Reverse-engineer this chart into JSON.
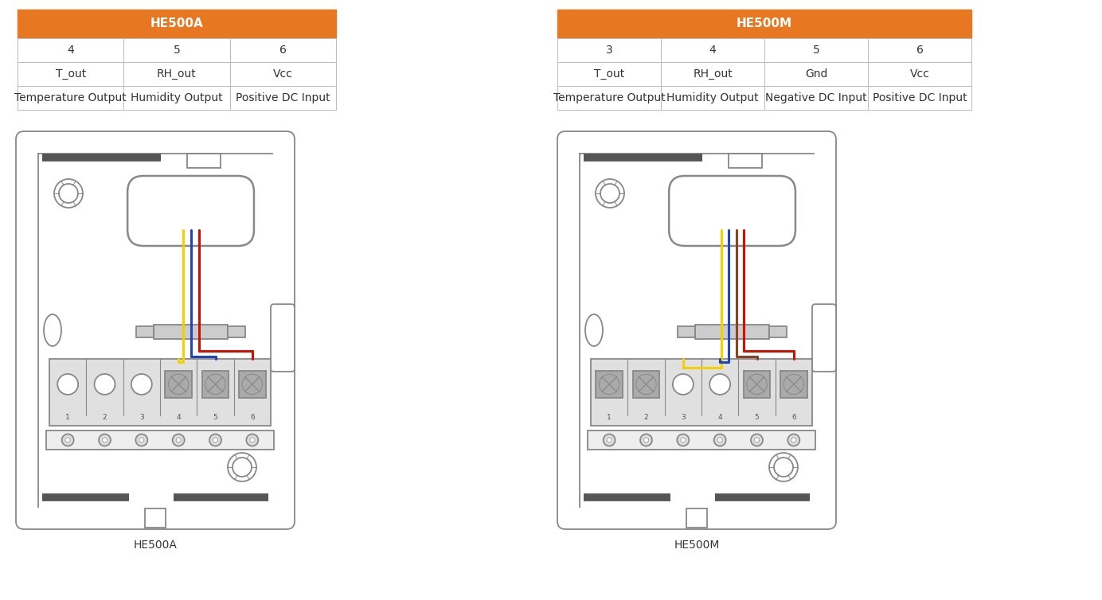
{
  "bg_color": "#ffffff",
  "orange_color": "#E87722",
  "table_border_color": "#bbbbbb",
  "tableA_title": "HE500A",
  "tableA_cols": [
    "4",
    "5",
    "6"
  ],
  "tableA_row2": [
    "T_out",
    "RH_out",
    "Vcc"
  ],
  "tableA_row3": [
    "Temperature Output",
    "Humidity Output",
    "Positive DC Input"
  ],
  "tableM_title": "HE500M",
  "tableM_cols": [
    "3",
    "4",
    "5",
    "6"
  ],
  "tableM_row2": [
    "T_out",
    "RH_out",
    "Gnd",
    "Vcc"
  ],
  "tableM_row3": [
    "Temperature Output",
    "Humidity Output",
    "Negative DC Input",
    "Positive DC Input"
  ],
  "labelA": "HE500A",
  "labelM": "HE500M",
  "wire_yellow": "#F5D000",
  "wire_blue": "#2244BB",
  "wire_red": "#CC1100",
  "wire_brown": "#884422",
  "table_font_size": 10,
  "label_font_size": 10,
  "diagram_ec": "#888888",
  "diagram_lw": 1.3
}
